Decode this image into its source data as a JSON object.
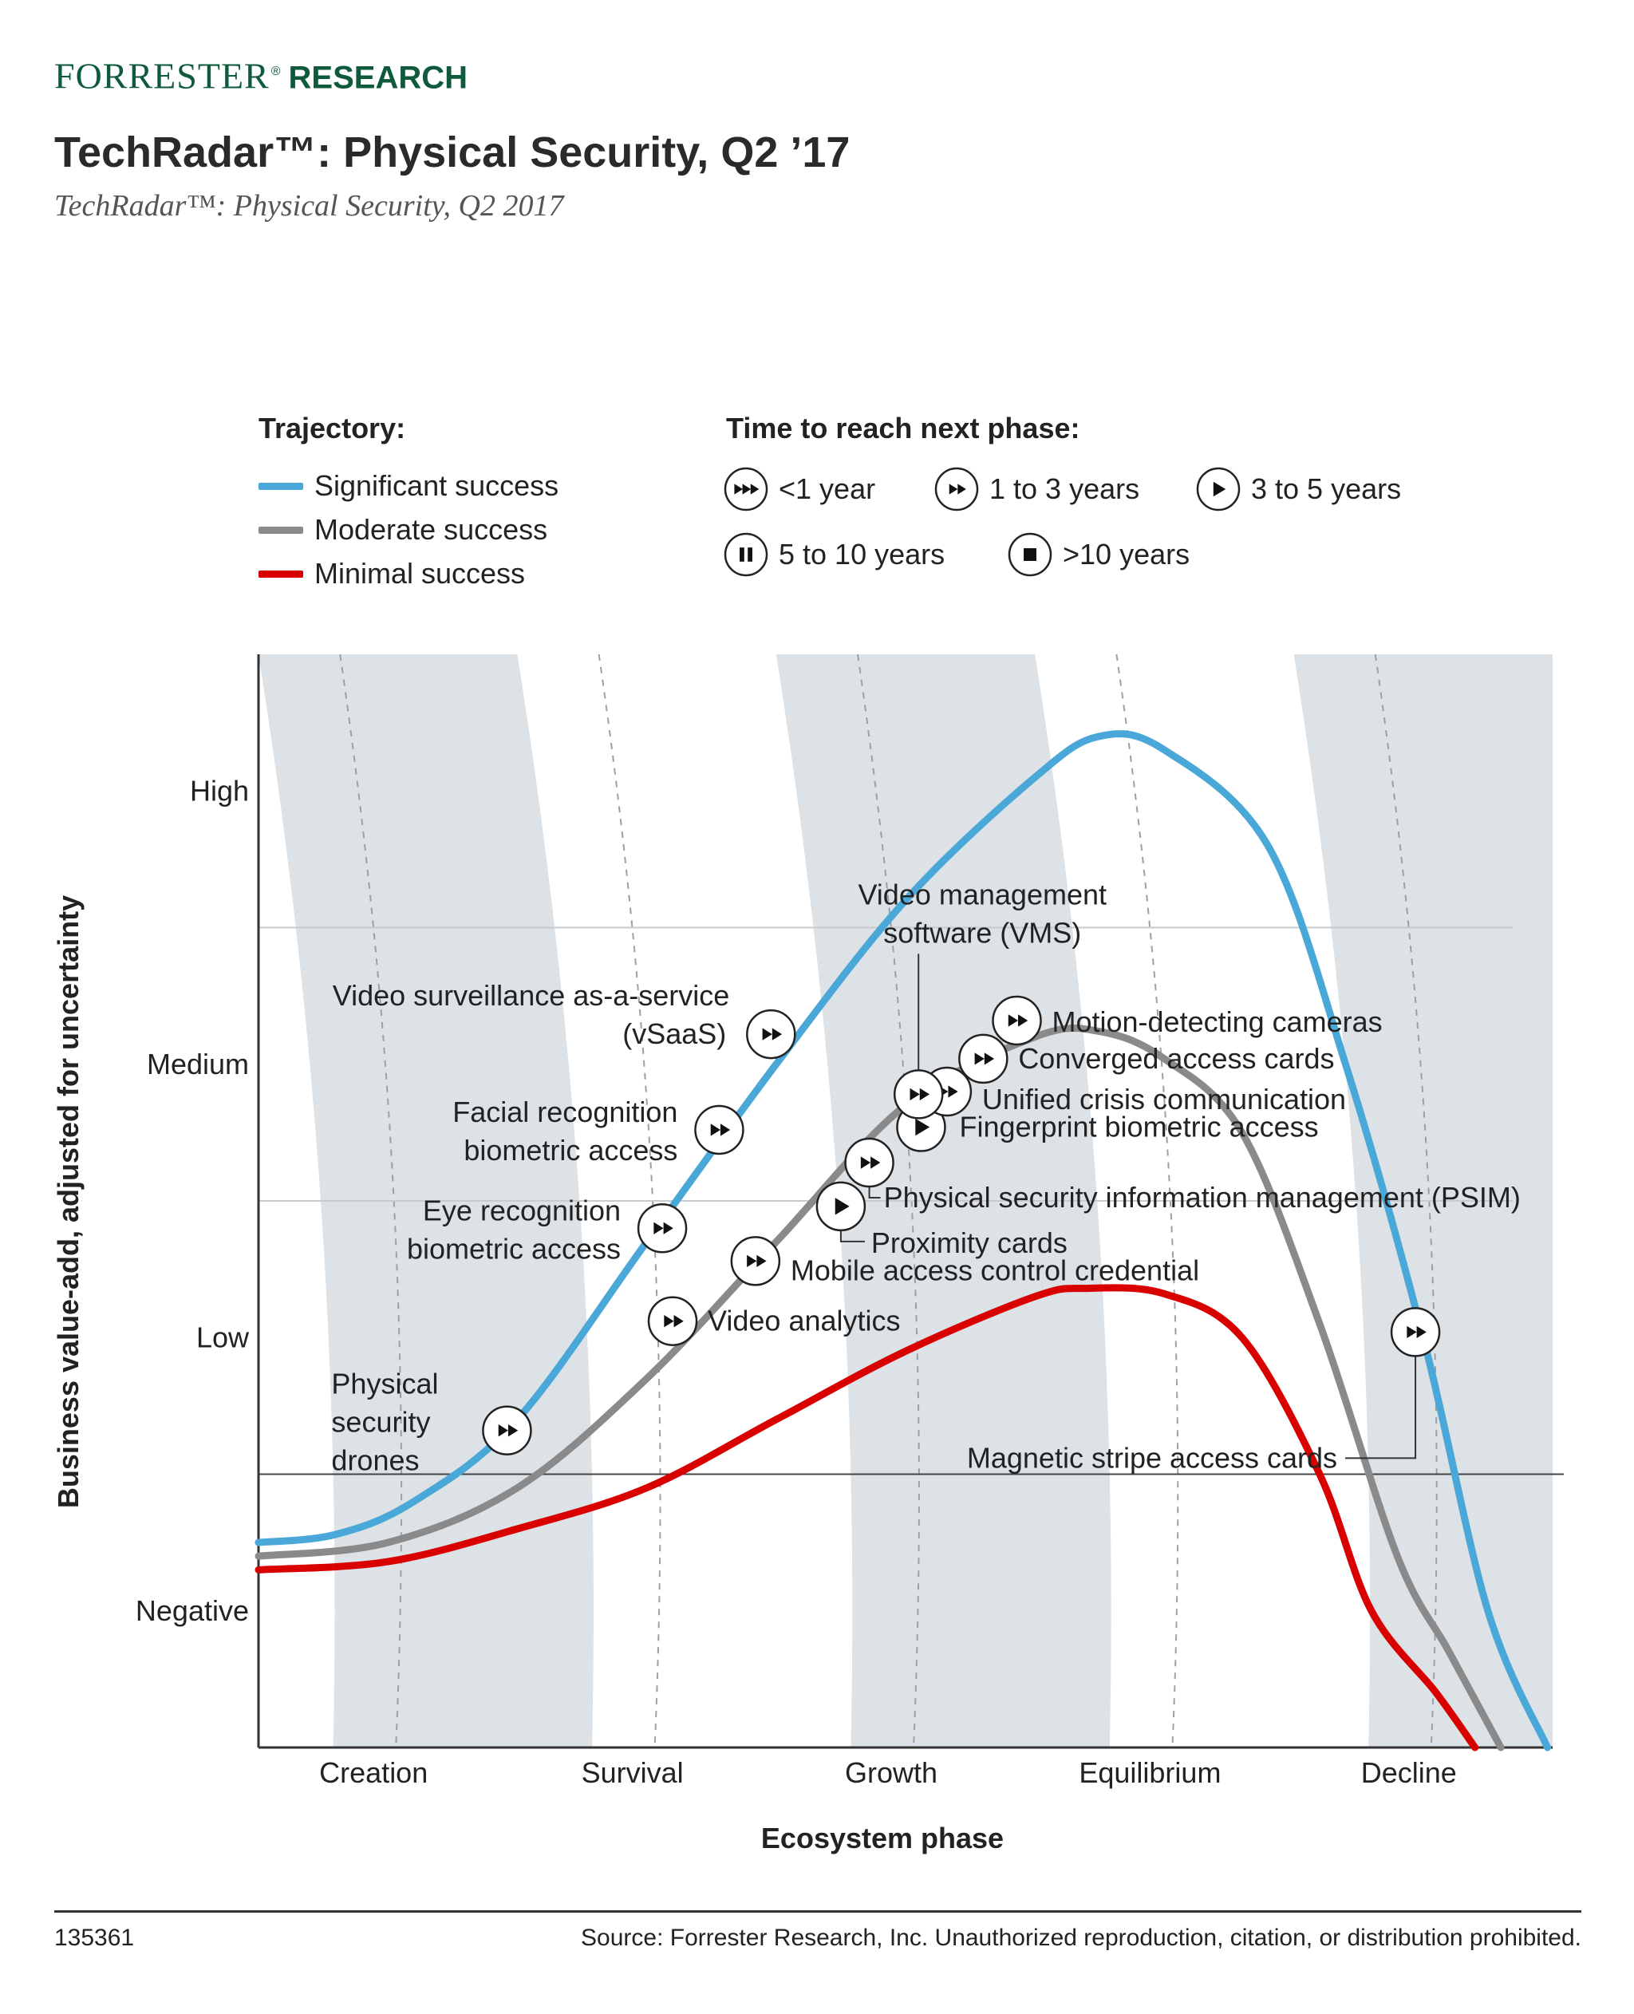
{
  "brand": {
    "name_a": "FORRESTER",
    "reg": "®",
    "name_b": "RESEARCH"
  },
  "title": "TechRadar™: Physical Security, Q2 ’17",
  "subtitle": "TechRadar™: Physical Security, Q2 2017",
  "legend": {
    "trajectory_title": "Trajectory:",
    "trajectories": [
      {
        "label": "Significant success",
        "color": "#4aa8d8"
      },
      {
        "label": "Moderate success",
        "color": "#8a8a8a"
      },
      {
        "label": "Minimal success",
        "color": "#d90000"
      }
    ],
    "time_title": "Time to reach next phase:",
    "times": [
      {
        "label": "<1 year",
        "icon": "triple-arrow-icon"
      },
      {
        "label": "1 to 3 years",
        "icon": "double-arrow-icon"
      },
      {
        "label": "3 to 5 years",
        "icon": "play-icon"
      },
      {
        "label": "5 to 10 years",
        "icon": "pause-icon"
      },
      {
        "label": ">10 years",
        "icon": "stop-icon"
      }
    ]
  },
  "chart_data": {
    "type": "line",
    "ylabel": "Business value-add, adjusted for uncertainty",
    "xlabel": "Ecosystem phase",
    "x_categories": [
      "Creation",
      "Survival",
      "Growth",
      "Equilibrium",
      "Decline"
    ],
    "y_categories": [
      "Negative",
      "Low",
      "Medium",
      "High"
    ],
    "xlim": [
      0,
      5
    ],
    "ylim": [
      -0.5,
      3.5
    ],
    "zero_line_y": 0.5,
    "grid_lines_y": [
      1.5,
      2.5
    ],
    "series": [
      {
        "name": "Significant success",
        "color": "#4aa8d8",
        "points": [
          [
            0,
            0.25
          ],
          [
            0.3,
            0.28
          ],
          [
            0.6,
            0.4
          ],
          [
            1.0,
            0.7
          ],
          [
            1.5,
            1.35
          ],
          [
            2.0,
            2.0
          ],
          [
            2.5,
            2.6
          ],
          [
            3.0,
            3.05
          ],
          [
            3.25,
            3.2
          ],
          [
            3.5,
            3.15
          ],
          [
            3.9,
            2.8
          ],
          [
            4.2,
            2.0
          ],
          [
            4.5,
            1.0
          ],
          [
            4.75,
            0.0
          ],
          [
            4.98,
            -0.5
          ]
        ]
      },
      {
        "name": "Moderate success",
        "color": "#8a8a8a",
        "points": [
          [
            0,
            0.2
          ],
          [
            0.5,
            0.25
          ],
          [
            1.0,
            0.45
          ],
          [
            1.5,
            0.85
          ],
          [
            2.0,
            1.35
          ],
          [
            2.5,
            1.85
          ],
          [
            3.0,
            2.1
          ],
          [
            3.25,
            2.12
          ],
          [
            3.5,
            2.02
          ],
          [
            3.8,
            1.75
          ],
          [
            4.1,
            1.05
          ],
          [
            4.4,
            0.2
          ],
          [
            4.6,
            -0.15
          ],
          [
            4.8,
            -0.5
          ]
        ]
      },
      {
        "name": "Minimal success",
        "color": "#d90000",
        "points": [
          [
            0,
            0.15
          ],
          [
            0.5,
            0.18
          ],
          [
            1.0,
            0.3
          ],
          [
            1.5,
            0.45
          ],
          [
            2.0,
            0.7
          ],
          [
            2.5,
            0.95
          ],
          [
            3.0,
            1.15
          ],
          [
            3.2,
            1.18
          ],
          [
            3.5,
            1.16
          ],
          [
            3.8,
            1.0
          ],
          [
            4.1,
            0.5
          ],
          [
            4.3,
            0.0
          ],
          [
            4.55,
            -0.3
          ],
          [
            4.7,
            -0.5
          ]
        ]
      }
    ],
    "technologies": [
      {
        "label": "Physical security drones",
        "lines": [
          "Physical",
          "security",
          "drones"
        ],
        "x": 0.96,
        "y": 0.66,
        "icon": "double-arrow-icon"
      },
      {
        "label": "Eye recognition biometric access",
        "lines": [
          "Eye recognition",
          "biometric access"
        ],
        "x": 1.56,
        "y": 1.4,
        "icon": "double-arrow-icon"
      },
      {
        "label": "Facial recognition biometric access",
        "lines": [
          "Facial recognition",
          "biometric access"
        ],
        "x": 1.78,
        "y": 1.76,
        "icon": "double-arrow-icon"
      },
      {
        "label": "Video surveillance as-a-service (vSaaS)",
        "lines": [
          "Video surveillance as-a-service",
          "(vSaaS)"
        ],
        "x": 1.98,
        "y": 2.11,
        "icon": "double-arrow-icon"
      },
      {
        "label": "Video analytics",
        "x": 1.6,
        "y": 1.06,
        "icon": "double-arrow-icon"
      },
      {
        "label": "Mobile access control credential",
        "x": 1.92,
        "y": 1.28,
        "icon": "double-arrow-icon"
      },
      {
        "label": "Proximity cards",
        "x": 2.25,
        "y": 1.48,
        "icon": "play-icon"
      },
      {
        "label": "Physical security information management (PSIM)",
        "x": 2.36,
        "y": 1.64,
        "icon": "double-arrow-icon"
      },
      {
        "label": "Fingerprint biometric access",
        "x": 2.56,
        "y": 1.77,
        "icon": "play-icon"
      },
      {
        "label": "Unified crisis communication",
        "x": 2.66,
        "y": 1.9,
        "icon": "double-arrow-icon"
      },
      {
        "label": "Video management software (VMS)",
        "lines": [
          "Video management",
          "software (VMS)"
        ],
        "x": 2.55,
        "y": 1.89,
        "icon": "double-arrow-icon"
      },
      {
        "label": "Converged access cards",
        "x": 2.8,
        "y": 2.02,
        "icon": "double-arrow-icon"
      },
      {
        "label": "Motion-detecting cameras",
        "x": 2.93,
        "y": 2.16,
        "icon": "double-arrow-icon"
      },
      {
        "label": "Magnetic stripe access cards",
        "x": 4.47,
        "y": 1.02,
        "icon": "double-arrow-icon"
      }
    ]
  },
  "footer": {
    "id": "135361",
    "source": "Source: Forrester Research, Inc. Unauthorized reproduction, citation, or distribution prohibited."
  }
}
